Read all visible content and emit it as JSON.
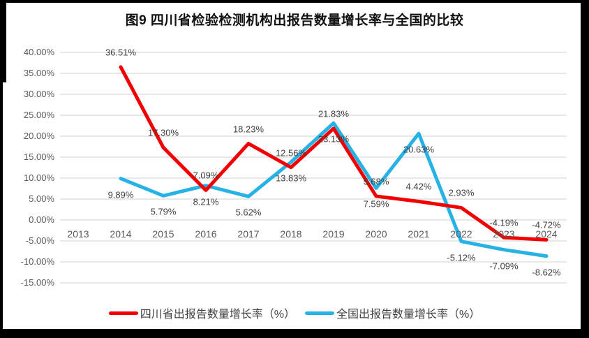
{
  "figure": {
    "title": "图9  四川省检验检测机构出报告数量增长率与全国的比较"
  },
  "chart_data": {
    "type": "line",
    "title": "图9  四川省检验检测机构出报告数量增长率与全国的比较",
    "categories": [
      "2013",
      "2014",
      "2015",
      "2016",
      "2017",
      "2018",
      "2019",
      "2020",
      "2021",
      "2022",
      "2023",
      "2024"
    ],
    "series": [
      {
        "name": "四川省出报告数量增长率（%）",
        "color": "#F20000",
        "values": [
          null,
          36.51,
          17.3,
          7.09,
          18.23,
          12.56,
          21.83,
          5.68,
          4.42,
          2.93,
          -4.19,
          -4.72
        ],
        "data_labels": [
          null,
          "36.51%",
          "17.30%",
          "7.09%",
          "18.23%",
          "12.56%",
          "21.83%",
          "5.68%",
          "4.42%",
          "2.93%",
          "-4.19%",
          "-4.72%"
        ],
        "label_position": "above"
      },
      {
        "name": "全国出报告数量增长率（%）",
        "color": "#27B2E5",
        "values": [
          null,
          9.89,
          5.79,
          8.21,
          5.62,
          13.83,
          23.13,
          7.59,
          20.63,
          -5.12,
          -7.09,
          -8.62
        ],
        "data_labels": [
          null,
          "9.89%",
          "5.79%",
          "8.21%",
          "5.62%",
          "13.83%",
          "23.13%",
          "7.59%",
          "20.63%",
          "-5.12%",
          "-7.09%",
          "-8.62%"
        ],
        "label_position": "below"
      }
    ],
    "y_axis": {
      "min": -15,
      "max": 40,
      "tick_values": [
        40,
        35,
        30,
        25,
        20,
        15,
        10,
        5,
        0,
        -5,
        -10,
        -15
      ],
      "tick_labels": [
        "40.00%",
        "35.00%",
        "30.00%",
        "25.00%",
        "20.00%",
        "15.00%",
        "10.00%",
        "5.00%",
        "0.00%",
        "-5.00%",
        "-10.00%",
        "-15.00%"
      ]
    },
    "grid": true,
    "gridline_color": "#D9D9D9",
    "legend_position": "bottom"
  }
}
